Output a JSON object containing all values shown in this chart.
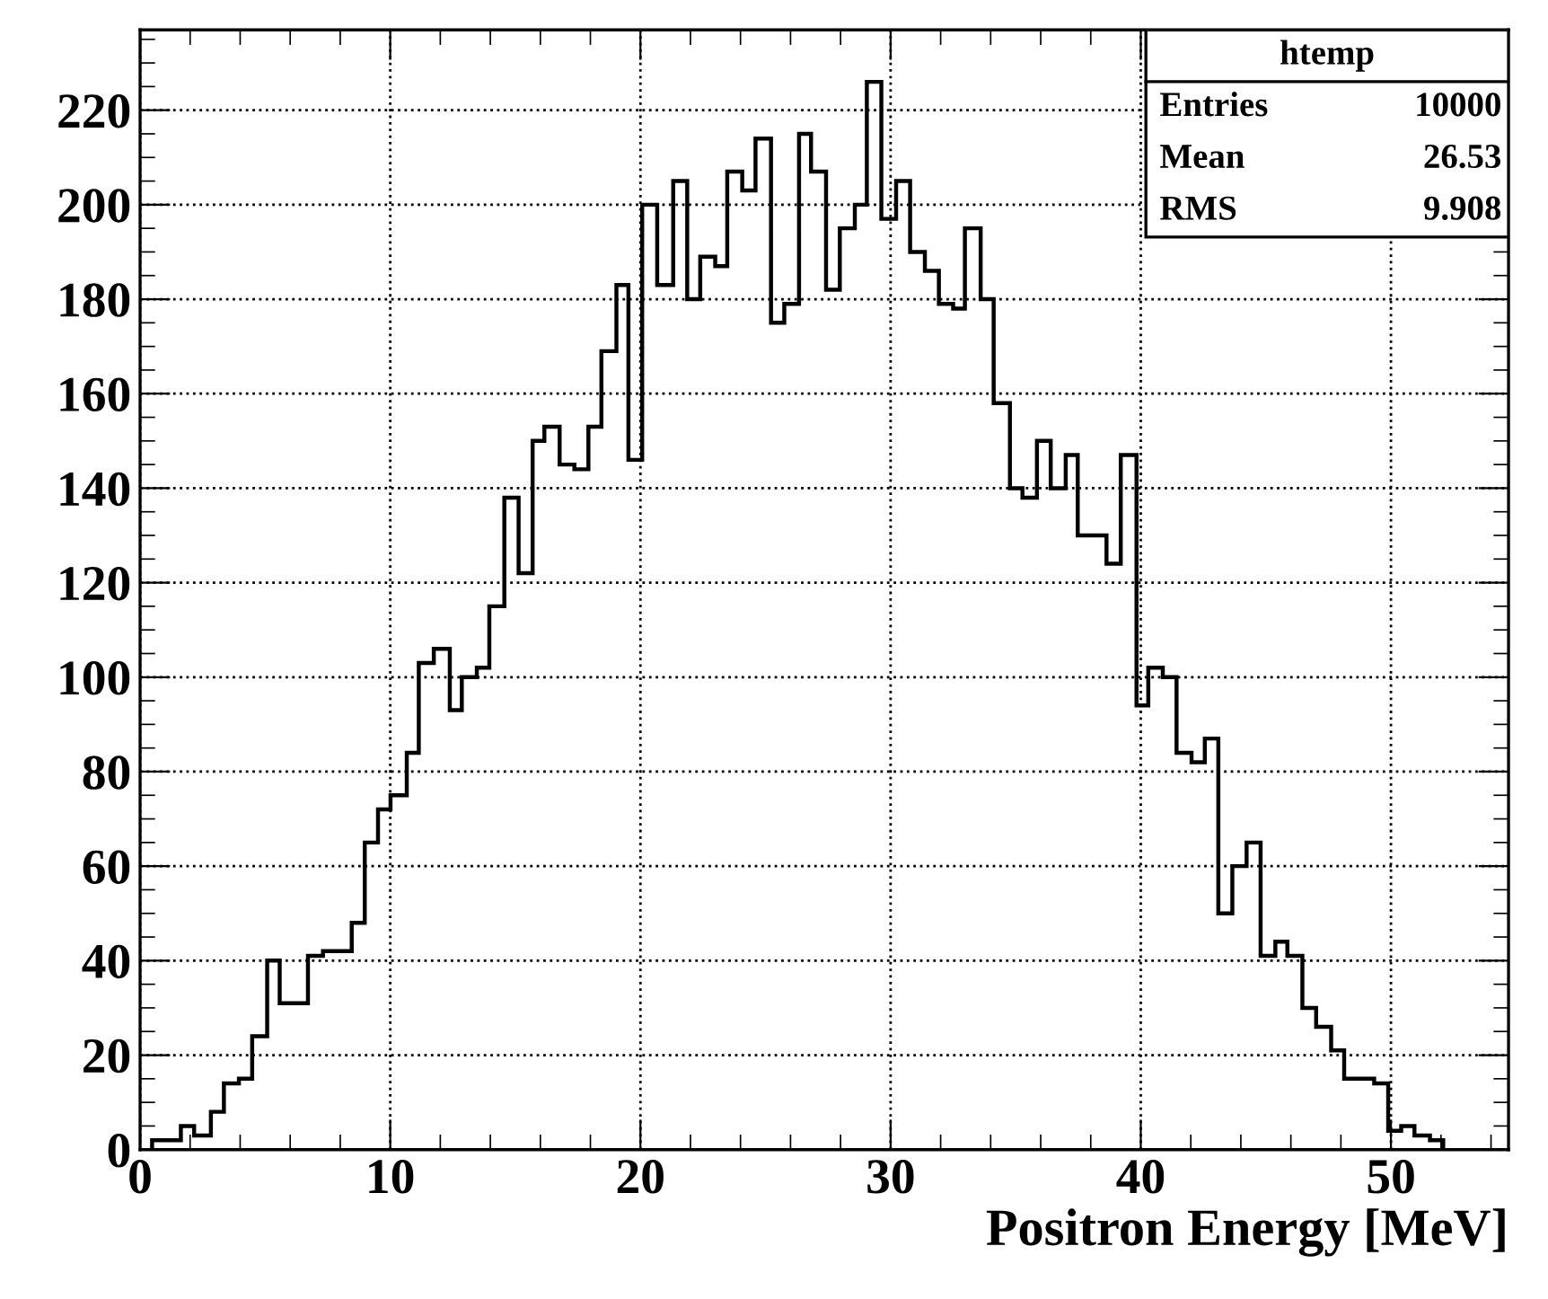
{
  "chart_data": {
    "type": "histogram",
    "xlabel": "Positron Energy [MeV]",
    "bins": [
      0.48,
      1.63,
      2.16,
      2.83,
      3.35,
      3.95,
      4.48,
      5.08,
      5.58,
      6.71,
      7.31,
      8.46,
      8.98,
      9.51,
      10.01,
      10.66,
      11.14,
      11.74,
      12.38,
      12.86,
      13.46,
      13.96,
      14.56,
      15.13,
      15.69,
      16.16,
      16.77,
      17.36,
      17.92,
      18.44,
      19.04,
      19.52,
      20.07,
      20.67,
      21.31,
      21.87,
      22.39,
      22.99,
      23.47,
      24.07,
      24.6,
      25.22,
      25.75,
      26.34,
      26.82,
      27.42,
      27.97,
      28.57,
      29.05,
      29.63,
      30.22,
      30.78,
      31.37,
      31.93,
      32.5,
      32.97,
      33.6,
      34.12,
      34.77,
      35.27,
      35.85,
      36.4,
      37.0,
      37.48,
      38.07,
      38.63,
      39.2,
      39.83,
      40.3,
      40.88,
      41.43,
      42.03,
      42.56,
      43.1,
      43.66,
      44.23,
      44.79,
      45.38,
      45.86,
      46.46,
      47.01,
      47.61,
      48.13,
      49.33,
      49.89,
      50.41,
      50.94,
      51.56,
      52.09
    ],
    "values": [
      2,
      5,
      3,
      8,
      14,
      15,
      24,
      40,
      31,
      41,
      42,
      48,
      65,
      72,
      75,
      84,
      103,
      106,
      93,
      100,
      102,
      115,
      138,
      122,
      150,
      153,
      145,
      144,
      153,
      169,
      183,
      146,
      200,
      183,
      205,
      180,
      189,
      187,
      207,
      203,
      214,
      175,
      179,
      215,
      207,
      182,
      195,
      200,
      226,
      197,
      205,
      190,
      186,
      179,
      178,
      195,
      180,
      158,
      140,
      138,
      150,
      140,
      147,
      130,
      130,
      124,
      147,
      94,
      102,
      100,
      84,
      82,
      87,
      50,
      60,
      65,
      41,
      44,
      41,
      30,
      26,
      21,
      15,
      14,
      4,
      5,
      3,
      2
    ],
    "color": "#000000",
    "xlim": [
      0,
      54.7
    ],
    "ylim": [
      0,
      237
    ],
    "xticks": [
      0,
      10,
      20,
      30,
      40,
      50
    ],
    "yticks": [
      0,
      20,
      40,
      60,
      80,
      100,
      120,
      140,
      160,
      180,
      200,
      220
    ],
    "grid": true,
    "annotations": [
      "htemp",
      "Entries",
      "10000",
      "Mean",
      "26.53",
      "RMS",
      "9.908"
    ]
  }
}
